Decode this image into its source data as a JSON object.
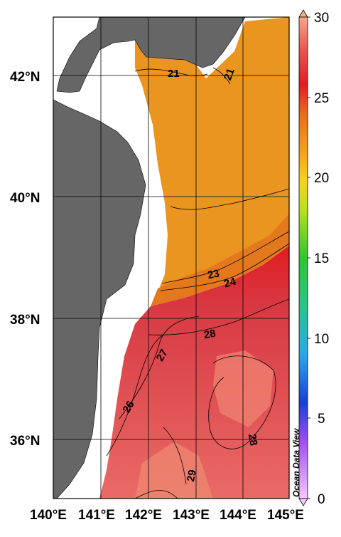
{
  "map": {
    "lon_ticks": [
      "140°E",
      "141°E",
      "142°E",
      "143°E",
      "144°E",
      "145°E"
    ],
    "lat_ticks": [
      "42°N",
      "40°N",
      "38°N",
      "36°N"
    ],
    "contour_labels": [
      "21",
      "21",
      "23",
      "24",
      "28",
      "27",
      "26",
      "28",
      "29"
    ],
    "credit": "Ocean Data View",
    "colors": {
      "land": "#666666",
      "cold": "#e8901e",
      "warm": "#e23a3a",
      "hot": "#f08070"
    }
  },
  "colorbar": {
    "ticks": [
      "30",
      "25",
      "20",
      "15",
      "10",
      "5",
      "0"
    ]
  }
}
